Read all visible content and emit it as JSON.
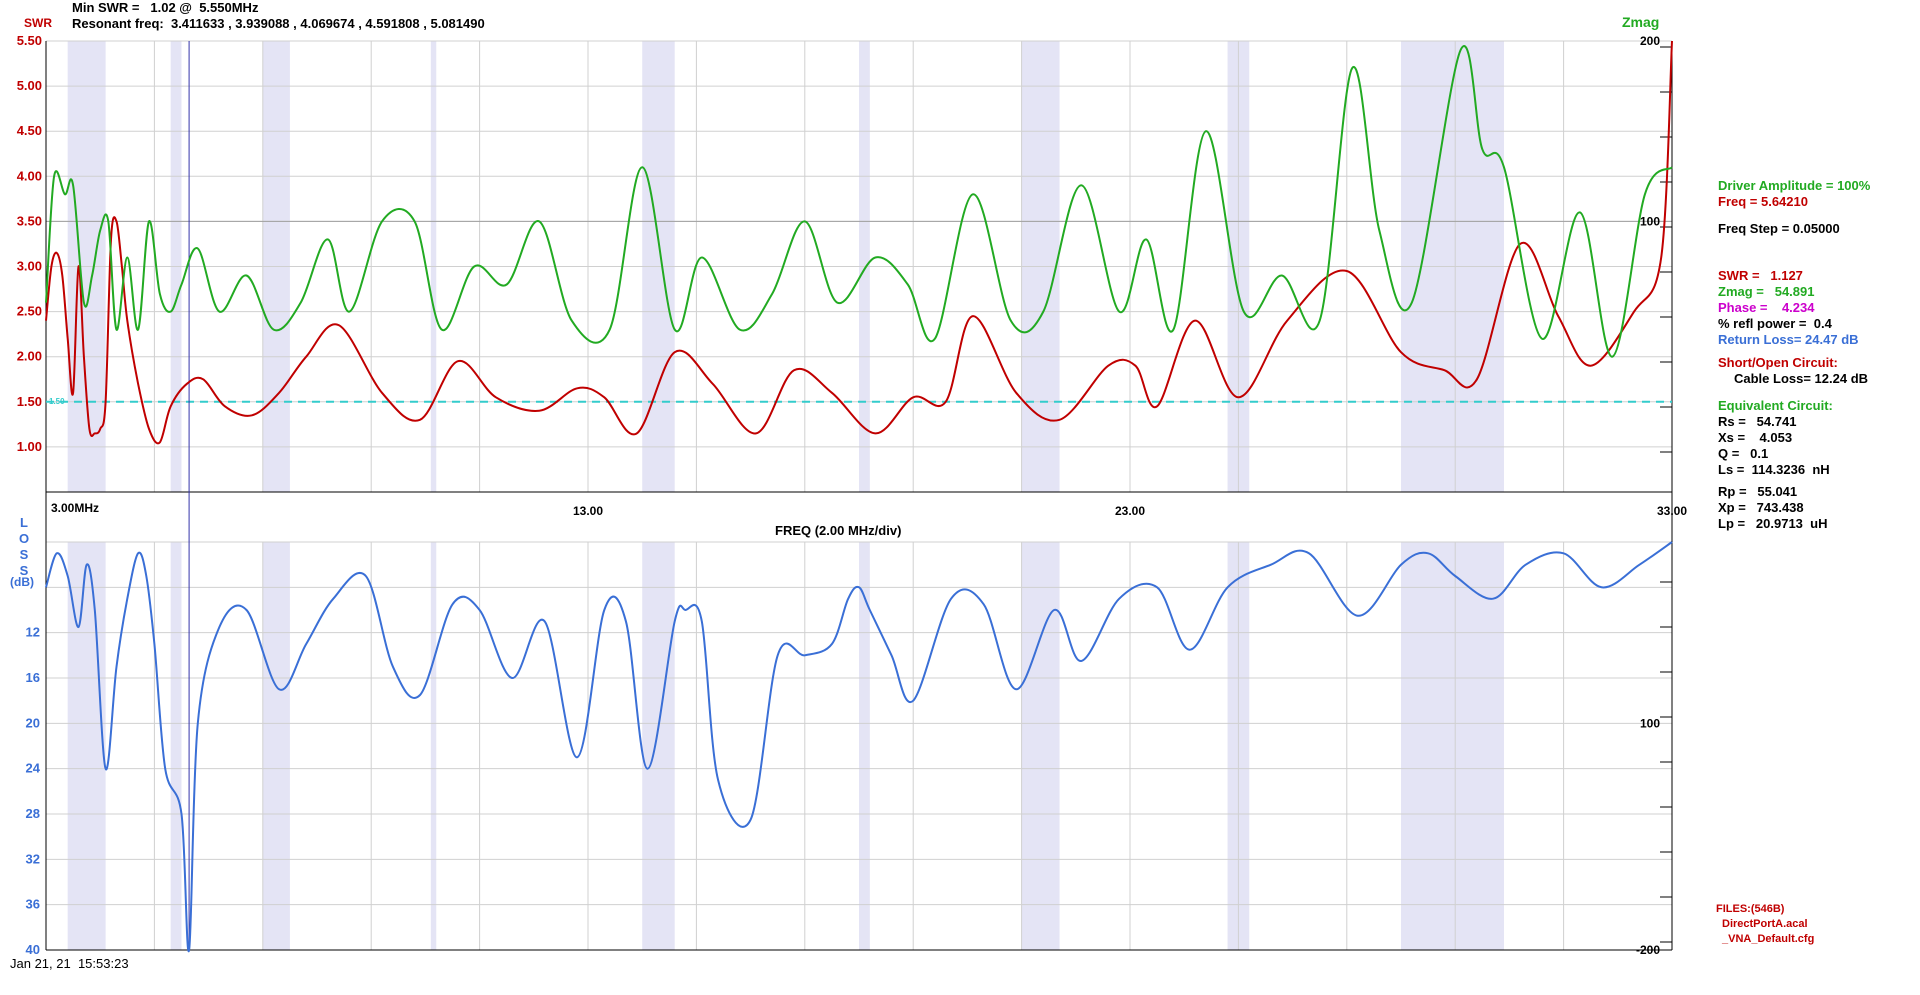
{
  "header": {
    "min_swr_label": "Min SWR =",
    "min_swr_value": "1.02 @  5.550MHz",
    "resonant_label": "Resonant freq:",
    "resonant_values": "3.411633 , 3.939088 , 4.069674 , 4.591808 , 5.081490"
  },
  "footer": {
    "timestamp": "Jan 21, 21  15:53:23"
  },
  "colors": {
    "swr": "#c00000",
    "zmag": "#22aa22",
    "loss": "#3a6fd6",
    "ref": "#33cccc",
    "band": "#e4e4f5",
    "grid": "#d0d0d0",
    "phase": "#cc00cc"
  },
  "panel": {
    "driver": "Driver Amplitude = 100%",
    "freq": "Freq = 5.64210",
    "step": "Freq Step = 0.05000",
    "swr": "SWR =   1.127",
    "zmag": "Zmag =   54.891",
    "phase": "Phase =    4.234",
    "refl": "% refl power =  0.4",
    "return_loss": "Return Loss= 24.47 dB",
    "short_open": "Short/Open Circuit:",
    "cable_loss": "Cable Loss= 12.24 dB",
    "equiv": "Equivalent Circuit:",
    "rs": "Rs =   54.741",
    "xs": "Xs =    4.053",
    "q": "Q =   0.1",
    "ls": "Ls =  114.3236  nH",
    "rp": "Rp =   55.041",
    "xp": "Xp =   743.438",
    "lp": "Lp =   20.9713  uH"
  },
  "files": {
    "title": "FILES:(546B)",
    "f1": "DirectPortA.acal",
    "f2": "_VNA_Default.cfg"
  },
  "chart_data": {
    "type": "line",
    "xlabel": "FREQ (2.00 MHz/div)",
    "x_start_label": "3.00MHz",
    "x_ticks": [
      "13.00",
      "23.00",
      "33.00"
    ],
    "xlim": [
      3.0,
      33.0
    ],
    "bands_mhz": [
      [
        3.4,
        4.1
      ],
      [
        5.3,
        5.5
      ],
      [
        7.0,
        7.5
      ],
      [
        10.1,
        10.2
      ],
      [
        14.0,
        14.6
      ],
      [
        18.0,
        18.2
      ],
      [
        21.0,
        21.7
      ],
      [
        24.8,
        25.2
      ],
      [
        28.0,
        29.9
      ]
    ],
    "marker_freq": 5.64,
    "top": {
      "swr_axis_label": "SWR",
      "zmag_axis_label": "Zmag",
      "swr_ticks": [
        "5.50",
        "5.00",
        "4.50",
        "4.00",
        "3.50",
        "3.00",
        "2.50",
        "2.00",
        "1.50",
        "1.00"
      ],
      "swr_ylim": [
        0.5,
        5.5
      ],
      "zmag_ticks": [
        "200",
        "100"
      ],
      "zmag_ylim": [
        -50,
        200
      ],
      "ref_label": "1.50",
      "ref_value": 1.5,
      "series": [
        {
          "key": "swr",
          "x": [
            3.0,
            3.1,
            3.2,
            3.3,
            3.4,
            3.5,
            3.6,
            3.7,
            3.8,
            3.9,
            4.0,
            4.1,
            4.2,
            4.3,
            4.4,
            4.5,
            4.7,
            4.9,
            5.1,
            5.3,
            5.6,
            5.9,
            6.3,
            6.8,
            7.3,
            7.8,
            8.4,
            9.2,
            9.9,
            10.6,
            11.3,
            12.1,
            12.8,
            13.3,
            13.9,
            14.6,
            15.3,
            16.1,
            16.8,
            17.5,
            18.3,
            19.0,
            19.6,
            20.1,
            20.9,
            21.7,
            22.6,
            23.1,
            23.5,
            24.2,
            25.0,
            25.9,
            27.0,
            28.0,
            28.8,
            29.4,
            30.2,
            30.9,
            31.5,
            32.3,
            32.8,
            33.0
          ],
          "y": [
            2.4,
            3.0,
            3.15,
            2.9,
            2.2,
            1.6,
            3.0,
            2.0,
            1.2,
            1.15,
            1.2,
            1.5,
            3.3,
            3.5,
            3.0,
            2.4,
            1.7,
            1.2,
            1.05,
            1.45,
            1.7,
            1.75,
            1.45,
            1.35,
            1.6,
            2.0,
            2.35,
            1.6,
            1.3,
            1.95,
            1.55,
            1.4,
            1.65,
            1.55,
            1.15,
            2.05,
            1.7,
            1.15,
            1.85,
            1.6,
            1.15,
            1.55,
            1.5,
            2.45,
            1.6,
            1.3,
            1.9,
            1.9,
            1.45,
            2.4,
            1.55,
            2.4,
            2.95,
            2.05,
            1.85,
            1.75,
            3.25,
            2.45,
            1.9,
            2.5,
            3.1,
            5.5
          ]
        },
        {
          "key": "zmag",
          "x": [
            3.0,
            3.15,
            3.35,
            3.5,
            3.7,
            3.85,
            4.0,
            4.15,
            4.3,
            4.5,
            4.7,
            4.9,
            5.1,
            5.3,
            5.5,
            5.8,
            6.2,
            6.7,
            7.2,
            7.7,
            8.2,
            8.6,
            9.2,
            9.8,
            10.3,
            10.9,
            11.5,
            12.1,
            12.7,
            13.4,
            14.0,
            14.6,
            15.1,
            15.8,
            16.4,
            17.0,
            17.6,
            18.3,
            18.9,
            19.4,
            20.1,
            20.8,
            21.4,
            22.1,
            22.8,
            23.3,
            23.8,
            24.4,
            25.1,
            25.8,
            26.5,
            27.1,
            27.6,
            28.2,
            29.1,
            29.5,
            29.9,
            30.6,
            31.3,
            31.9,
            32.5,
            33.0
          ],
          "y": [
            55,
            125,
            115,
            120,
            55,
            70,
            95,
            100,
            40,
            80,
            40,
            100,
            60,
            50,
            65,
            85,
            50,
            70,
            40,
            55,
            90,
            50,
            100,
            100,
            40,
            75,
            65,
            100,
            45,
            40,
            130,
            40,
            80,
            40,
            60,
            100,
            55,
            80,
            65,
            35,
            115,
            45,
            50,
            120,
            50,
            90,
            40,
            150,
            50,
            70,
            45,
            185,
            95,
            55,
            195,
            140,
            130,
            35,
            105,
            25,
            115,
            130
          ]
        }
      ]
    },
    "bottom": {
      "loss_axis_label": "LOSS",
      "loss_unit": "(dB)",
      "loss_ticks": [
        "12",
        "16",
        "20",
        "24",
        "28",
        "32",
        "36",
        "40"
      ],
      "loss_ylim": [
        4,
        40
      ],
      "right_ticks": [
        "100",
        "-200"
      ],
      "series": [
        {
          "key": "loss",
          "x": [
            3.0,
            3.2,
            3.4,
            3.6,
            3.75,
            3.9,
            4.1,
            4.3,
            4.5,
            4.7,
            4.85,
            5.0,
            5.2,
            5.5,
            5.64,
            5.8,
            6.2,
            6.7,
            7.3,
            7.8,
            8.3,
            8.9,
            9.4,
            9.9,
            10.5,
            11.0,
            11.6,
            12.2,
            12.8,
            13.3,
            13.7,
            14.1,
            14.6,
            14.8,
            15.1,
            15.4,
            16.0,
            16.5,
            17.0,
            17.5,
            17.8,
            18.0,
            18.2,
            18.6,
            19.0,
            19.7,
            20.3,
            20.9,
            21.6,
            22.1,
            22.8,
            23.5,
            24.1,
            24.8,
            25.6,
            26.3,
            27.2,
            28.0,
            28.5,
            29.0,
            29.7,
            30.3,
            31.0,
            31.7,
            32.4,
            33.0
          ],
          "y": [
            8,
            5,
            7,
            11.5,
            6,
            10,
            24,
            15,
            9,
            5,
            7,
            13,
            24,
            28,
            41,
            20,
            11.5,
            10,
            17,
            13,
            9,
            7,
            15,
            17.5,
            9.5,
            10,
            16,
            11,
            23,
            10,
            11,
            24,
            11,
            10,
            11,
            25,
            28.5,
            14,
            14,
            13,
            9,
            8,
            10,
            14,
            18,
            9,
            9.5,
            17,
            10,
            14.5,
            9,
            8,
            13.5,
            8,
            6,
            5,
            10.5,
            6,
            5,
            7,
            9,
            6,
            5,
            8,
            6,
            4
          ]
        }
      ]
    }
  }
}
